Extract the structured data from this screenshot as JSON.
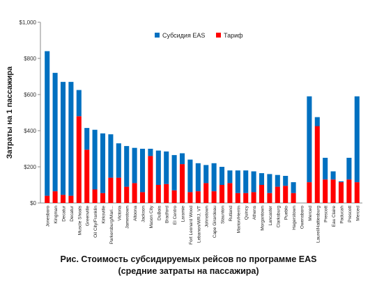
{
  "chart_data": {
    "type": "bar",
    "stacked": true,
    "ylabel": "Затраты на 1 пассажира",
    "ylim": [
      0,
      1000
    ],
    "yticks": [
      "$0",
      "$200",
      "$400",
      "$600",
      "$800",
      "$1,000"
    ],
    "grid": false,
    "legend_position": "top",
    "categories": [
      "Jonesboro",
      "Kingman",
      "Decatur",
      "Decatur",
      "Muscle Shoals",
      "Greenville",
      "Oil City/Franklin",
      "Kirksville",
      "Parkersburg/Mari...",
      "Victoria",
      "Jamestown",
      "Altoona",
      "Jackson",
      "Mason City",
      "DuBois",
      "Bradford",
      "El Centro",
      "Laramie",
      "Fort Leonard Wood",
      "Lebanon/WRJ, VT",
      "Johnstown",
      "Cape Girardeau",
      "Staunton",
      "Rutland",
      "Marion/Herrin",
      "Quincy",
      "Athens",
      "Morgantown",
      "Lancaster",
      "Clarksburg",
      "Pueblo",
      "Hagerstown",
      "Owensboro",
      "Merced",
      "Laurel/Hattiesburg",
      "Prescott",
      "Eau Claire",
      "Paducah",
      "Prescott",
      "Merced"
    ],
    "series": [
      {
        "name": "Тариф",
        "color": "#ff0000",
        "values": [
          40,
          65,
          45,
          40,
          480,
          295,
          75,
          55,
          140,
          140,
          90,
          110,
          60,
          260,
          100,
          105,
          70,
          215,
          60,
          65,
          110,
          65,
          100,
          110,
          55,
          55,
          60,
          100,
          55,
          90,
          95,
          55,
          0,
          115,
          425,
          130,
          130,
          115,
          130,
          115
        ]
      },
      {
        "name": "Субсидия EAS",
        "color": "#0070c0",
        "values": [
          800,
          655,
          625,
          630,
          145,
          120,
          330,
          330,
          240,
          190,
          225,
          195,
          240,
          40,
          190,
          180,
          195,
          60,
          180,
          155,
          100,
          155,
          100,
          70,
          125,
          125,
          115,
          65,
          105,
          65,
          55,
          60,
          0,
          475,
          50,
          120,
          45,
          5,
          120,
          475
        ]
      }
    ]
  },
  "caption": {
    "line1": "Рис. Стоимость субсидируемых рейсов по программе EAS",
    "line2": "(средние затраты на пассажира)"
  }
}
